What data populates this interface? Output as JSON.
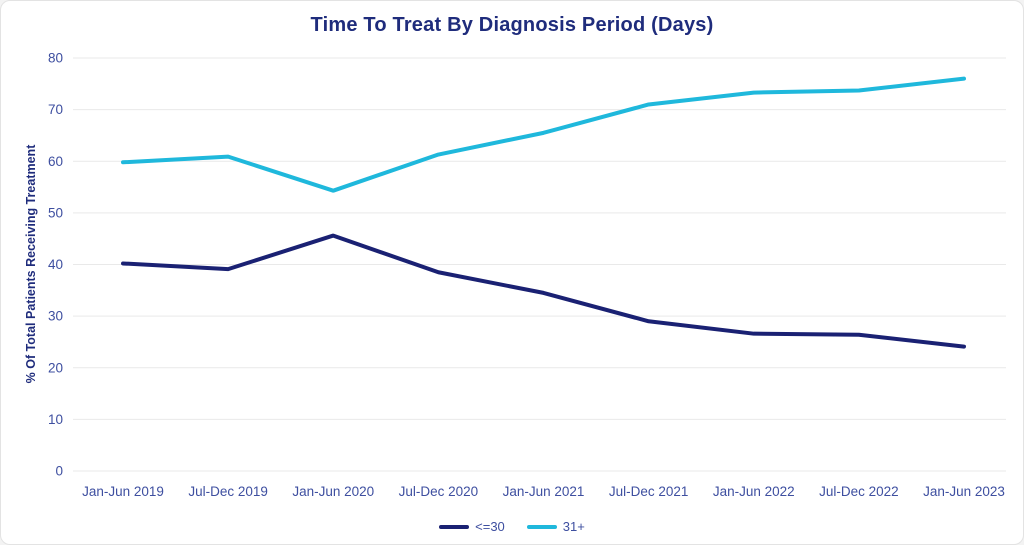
{
  "page": {
    "background": "#ffffff",
    "card_border": "#e3e3e3"
  },
  "chart_data": {
    "type": "line",
    "title": "Time To Treat By Diagnosis Period (Days)",
    "xlabel": "",
    "ylabel": "% Of Total Patients Receiving Treatment",
    "categories": [
      "Jan-Jun 2019",
      "Jul-Dec 2019",
      "Jan-Jun 2020",
      "Jul-Dec 2020",
      "Jan-Jun 2021",
      "Jul-Dec 2021",
      "Jan-Jun 2022",
      "Jul-Dec 2022",
      "Jan-Jun 2023"
    ],
    "series": [
      {
        "name": "<=30",
        "color": "#1A2173",
        "values": [
          40.2,
          39.1,
          45.6,
          38.5,
          34.5,
          29.0,
          26.6,
          26.4,
          24.1
        ]
      },
      {
        "name": "31+",
        "color": "#1FB8DC",
        "values": [
          59.8,
          60.9,
          54.3,
          61.3,
          65.5,
          71.0,
          73.3,
          73.7,
          76.0
        ]
      }
    ],
    "ylim": [
      0,
      80
    ],
    "yticks": [
      0,
      10,
      20,
      30,
      40,
      50,
      60,
      70,
      80
    ],
    "grid": true,
    "legend_position": "bottom",
    "colors": {
      "title": "#1F2C7C",
      "axis_title": "#1F2C7C",
      "tick_label": "#3E4FA0",
      "gridline": "#E9E9E9"
    }
  }
}
